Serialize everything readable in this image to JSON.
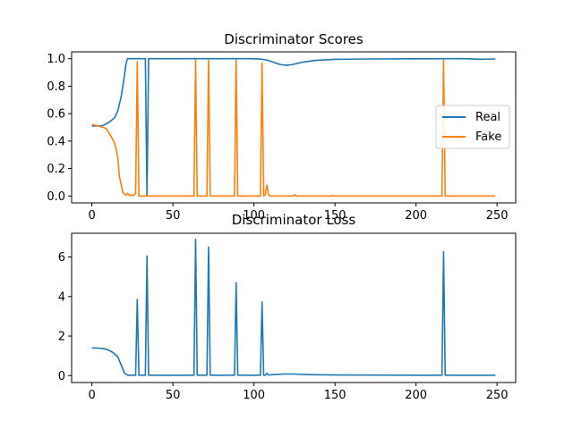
{
  "chart_data": [
    {
      "type": "line",
      "title": "Discriminator Scores",
      "xlabel": "",
      "ylabel": "",
      "xlim": [
        -12.5,
        261.5
      ],
      "ylim": [
        -0.05,
        1.05
      ],
      "xticks": [
        0,
        50,
        100,
        150,
        200,
        250
      ],
      "yticks": [
        0.0,
        0.2,
        0.4,
        0.6,
        0.8,
        1.0
      ],
      "xtick_labels": [
        "0",
        "50",
        "100",
        "150",
        "200",
        "250"
      ],
      "ytick_labels": [
        "0.0",
        "0.2",
        "0.4",
        "0.6",
        "0.8",
        "1.0"
      ],
      "grid": false,
      "legend_position": "center-right",
      "series": [
        {
          "name": "Real",
          "color": "#1f77b4",
          "points": [
            [
              0,
              0.51
            ],
            [
              6,
              0.51
            ],
            [
              8,
              0.52
            ],
            [
              11,
              0.54
            ],
            [
              14,
              0.57
            ],
            [
              16,
              0.62
            ],
            [
              18,
              0.72
            ],
            [
              20,
              0.87
            ],
            [
              21,
              0.96
            ],
            [
              22,
              1.0
            ],
            [
              33,
              1.0
            ],
            [
              34,
              0.0
            ],
            [
              35,
              1.0
            ],
            [
              100,
              1.0
            ],
            [
              104,
              0.997
            ],
            [
              108,
              0.99
            ],
            [
              112,
              0.975
            ],
            [
              116,
              0.958
            ],
            [
              120,
              0.952
            ],
            [
              124,
              0.958
            ],
            [
              130,
              0.975
            ],
            [
              138,
              0.988
            ],
            [
              150,
              0.995
            ],
            [
              170,
              0.998
            ],
            [
              200,
              0.999
            ],
            [
              230,
              1.0
            ],
            [
              240,
              0.996
            ],
            [
              249,
              0.998
            ]
          ]
        },
        {
          "name": "Fake",
          "color": "#ff7f0e",
          "points": [
            [
              0,
              0.52
            ],
            [
              4,
              0.51
            ],
            [
              7,
              0.5
            ],
            [
              9,
              0.49
            ],
            [
              11,
              0.45
            ],
            [
              13,
              0.41
            ],
            [
              14,
              0.38
            ],
            [
              15,
              0.34
            ],
            [
              16,
              0.28
            ],
            [
              17,
              0.14
            ],
            [
              18,
              0.09
            ],
            [
              19,
              0.03
            ],
            [
              20,
              0.015
            ],
            [
              21,
              0.005
            ],
            [
              22,
              0.02
            ],
            [
              23,
              0.005
            ],
            [
              26,
              0.005
            ],
            [
              27,
              0.02
            ],
            [
              28,
              0.98
            ],
            [
              29,
              0.0
            ],
            [
              63,
              0.0
            ],
            [
              64,
              0.99
            ],
            [
              65,
              0.0
            ],
            [
              71,
              0.0
            ],
            [
              72,
              0.99
            ],
            [
              73,
              0.0
            ],
            [
              88,
              0.0
            ],
            [
              89,
              0.99
            ],
            [
              90,
              0.0
            ],
            [
              104,
              0.0
            ],
            [
              105,
              0.97
            ],
            [
              106,
              0.0
            ],
            [
              107,
              0.01
            ],
            [
              108,
              0.08
            ],
            [
              109,
              0.01
            ],
            [
              110,
              0.0
            ],
            [
              124,
              0.0
            ],
            [
              125,
              0.01
            ],
            [
              126,
              0.0
            ],
            [
              148,
              0.0
            ],
            [
              149,
              0.005
            ],
            [
              150,
              0.0
            ],
            [
              216,
              0.0
            ],
            [
              217,
              0.99
            ],
            [
              218,
              0.0
            ],
            [
              249,
              0.0
            ]
          ]
        }
      ]
    },
    {
      "type": "line",
      "title": "Discriminator Loss",
      "xlabel": "",
      "ylabel": "",
      "xlim": [
        -12.5,
        261.5
      ],
      "ylim": [
        -0.35,
        7.2
      ],
      "xticks": [
        0,
        50,
        100,
        150,
        200,
        250
      ],
      "yticks": [
        0,
        2,
        4,
        6
      ],
      "xtick_labels": [
        "0",
        "50",
        "100",
        "150",
        "200",
        "250"
      ],
      "ytick_labels": [
        "0",
        "2",
        "4",
        "6"
      ],
      "grid": false,
      "series": [
        {
          "color": "#1f77b4",
          "points": [
            [
              0,
              1.4
            ],
            [
              4,
              1.39
            ],
            [
              7,
              1.37
            ],
            [
              10,
              1.3
            ],
            [
              13,
              1.17
            ],
            [
              16,
              0.95
            ],
            [
              18,
              0.55
            ],
            [
              20,
              0.15
            ],
            [
              22,
              0.02
            ],
            [
              27,
              0.02
            ],
            [
              28,
              3.85
            ],
            [
              29,
              0.02
            ],
            [
              33,
              0.02
            ],
            [
              34,
              6.05
            ],
            [
              35,
              0.02
            ],
            [
              63,
              0.02
            ],
            [
              64,
              6.9
            ],
            [
              65,
              0.02
            ],
            [
              71,
              0.02
            ],
            [
              72,
              6.5
            ],
            [
              73,
              0.02
            ],
            [
              88,
              0.02
            ],
            [
              89,
              4.7
            ],
            [
              90,
              0.02
            ],
            [
              104,
              0.02
            ],
            [
              105,
              3.72
            ],
            [
              106,
              0.02
            ],
            [
              107,
              0.02
            ],
            [
              108,
              0.12
            ],
            [
              109,
              0.03
            ],
            [
              112,
              0.05
            ],
            [
              118,
              0.08
            ],
            [
              124,
              0.08
            ],
            [
              135,
              0.05
            ],
            [
              150,
              0.03
            ],
            [
              200,
              0.02
            ],
            [
              216,
              0.02
            ],
            [
              217,
              6.27
            ],
            [
              218,
              0.02
            ],
            [
              249,
              0.02
            ]
          ]
        }
      ]
    }
  ]
}
